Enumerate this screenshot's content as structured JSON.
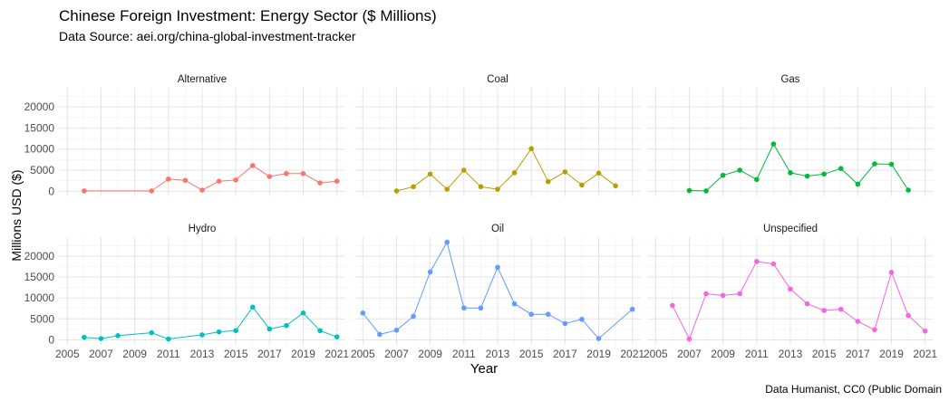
{
  "title": "Chinese Foreign Investment: Energy Sector ($ Millions)",
  "subtitle": "Data Source: aei.org/china-global-investment-tracker",
  "caption": "Data Humanist, CC0 (Public Domain",
  "chart_data": {
    "type": "line",
    "facets": true,
    "xlabel": "Year",
    "ylabel": "Millions USD ($)",
    "xlim": [
      2004.5,
      2021.5
    ],
    "ylim": [
      -1200,
      24500
    ],
    "x_ticks": [
      2005,
      2007,
      2009,
      2011,
      2013,
      2015,
      2017,
      2019,
      2021
    ],
    "y_ticks": [
      0,
      5000,
      10000,
      15000,
      20000
    ],
    "y_tick_labels": [
      "0",
      "5000",
      "10000",
      "15000",
      "20000"
    ],
    "grid": true,
    "legend": "none",
    "series": [
      {
        "name": "Alternative",
        "color": "#F8766D",
        "x": [
          2006,
          2010,
          2011,
          2012,
          2013,
          2014,
          2015,
          2016,
          2017,
          2018,
          2019,
          2020,
          2021
        ],
        "y": [
          100,
          100,
          2900,
          2600,
          300,
          2400,
          2700,
          6100,
          3500,
          4200,
          4200,
          2000,
          2400
        ]
      },
      {
        "name": "Coal",
        "color": "#B79F00",
        "x": [
          2007,
          2008,
          2009,
          2010,
          2011,
          2012,
          2013,
          2014,
          2015,
          2016,
          2017,
          2018,
          2019,
          2020
        ],
        "y": [
          100,
          1100,
          4100,
          500,
          5000,
          1100,
          500,
          4400,
          10100,
          2300,
          4600,
          1500,
          4300,
          1300
        ]
      },
      {
        "name": "Gas",
        "color": "#00BA38",
        "x": [
          2007,
          2008,
          2009,
          2010,
          2011,
          2012,
          2013,
          2014,
          2015,
          2016,
          2017,
          2018,
          2019,
          2020
        ],
        "y": [
          200,
          100,
          3800,
          5000,
          2800,
          11200,
          4400,
          3600,
          4100,
          5400,
          1700,
          6500,
          6400,
          300
        ]
      },
      {
        "name": "Hydro",
        "color": "#00BFC4",
        "x": [
          2006,
          2007,
          2008,
          2010,
          2011,
          2013,
          2014,
          2015,
          2016,
          2017,
          2018,
          2019,
          2020,
          2021
        ],
        "y": [
          600,
          300,
          1000,
          1700,
          200,
          1200,
          1900,
          2200,
          7800,
          2600,
          3400,
          6400,
          2200,
          700
        ]
      },
      {
        "name": "Oil",
        "color": "#619CFF",
        "x": [
          2005,
          2006,
          2007,
          2008,
          2009,
          2010,
          2011,
          2012,
          2013,
          2014,
          2015,
          2016,
          2017,
          2018,
          2019,
          2021
        ],
        "y": [
          6400,
          1300,
          2300,
          5600,
          16200,
          23300,
          7600,
          7600,
          17300,
          8600,
          6100,
          6100,
          3900,
          4900,
          300,
          7300
        ]
      },
      {
        "name": "Unspecified",
        "color": "#F564E3",
        "x": [
          2006,
          2007,
          2008,
          2009,
          2010,
          2011,
          2012,
          2013,
          2014,
          2015,
          2016,
          2017,
          2018,
          2019,
          2020,
          2021
        ],
        "y": [
          8200,
          200,
          11000,
          10600,
          11000,
          18700,
          18100,
          12100,
          8600,
          7000,
          7300,
          4400,
          2400,
          16100,
          5800,
          2100
        ]
      }
    ]
  }
}
